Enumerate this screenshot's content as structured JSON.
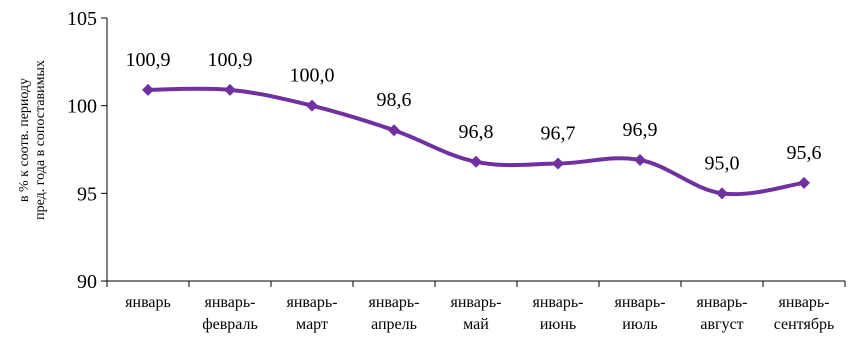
{
  "chart_data": {
    "type": "line",
    "title": "",
    "xlabel": "",
    "ylabel_lines": [
      "в % к соотв. периоду",
      "пред. года в сопоставимых"
    ],
    "ylim": [
      90,
      105
    ],
    "yticks": [
      90,
      95,
      100,
      105
    ],
    "categories": [
      [
        "январь"
      ],
      [
        "январь-",
        "февраль"
      ],
      [
        "январь-",
        "март"
      ],
      [
        "январь-",
        "апрель"
      ],
      [
        "январь-",
        "май"
      ],
      [
        "январь-",
        "июнь"
      ],
      [
        "январь-",
        "июль"
      ],
      [
        "январь-",
        "август"
      ],
      [
        "январь-",
        "сентябрь"
      ]
    ],
    "values": [
      100.9,
      100.9,
      100.0,
      98.6,
      96.8,
      96.7,
      96.9,
      95.0,
      95.6
    ],
    "data_labels": [
      "100,9",
      "100,9",
      "100,0",
      "98,6",
      "96,8",
      "96,7",
      "96,9",
      "95,0",
      "95,6"
    ],
    "series_color": "#7030A0",
    "grid": false,
    "legend": "none"
  }
}
